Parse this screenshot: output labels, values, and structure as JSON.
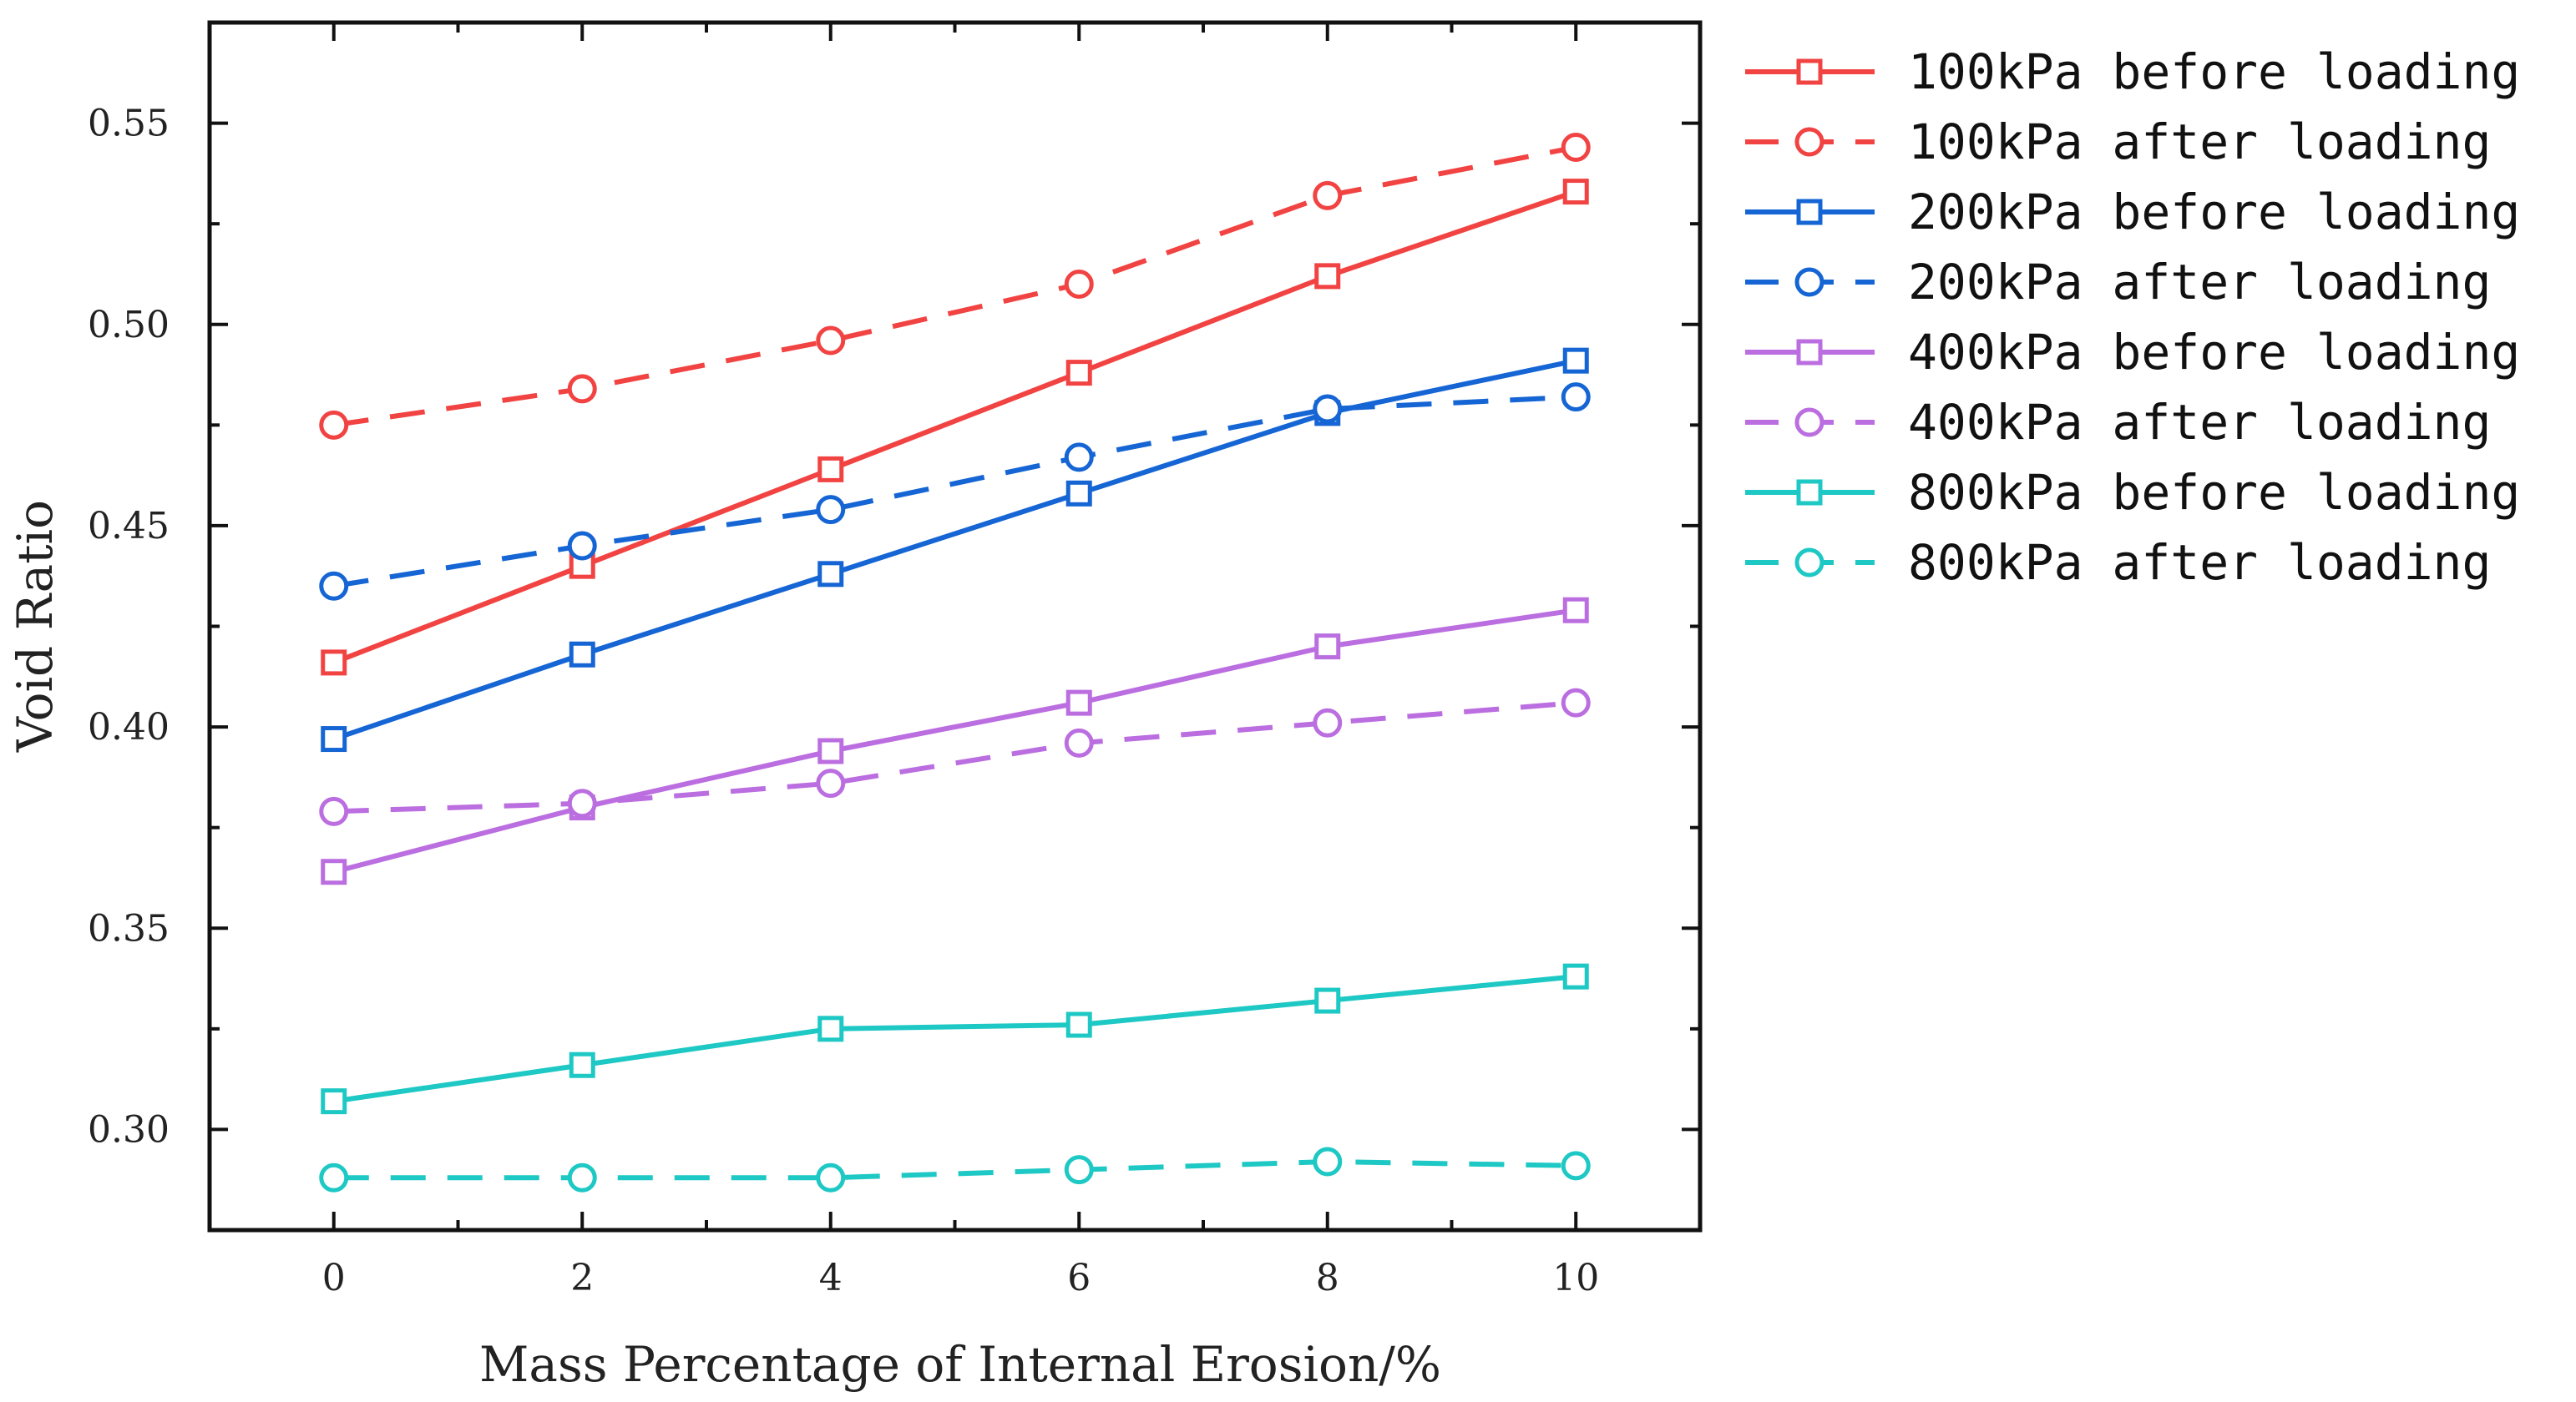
{
  "chart_data": {
    "type": "line",
    "title": "",
    "xlabel": "Mass Percentage of Internal Erosion/%",
    "ylabel": "Void Ratio",
    "x": [
      0,
      2,
      4,
      6,
      8,
      10
    ],
    "xticks": [
      "0",
      "2",
      "4",
      "6",
      "8",
      "10"
    ],
    "yticks": [
      "0.30",
      "0.35",
      "0.40",
      "0.45",
      "0.50",
      "0.55"
    ],
    "xlim": [
      -1,
      11
    ],
    "ylim": [
      0.275,
      0.575
    ],
    "grid": false,
    "legend_position": "outside-right-top",
    "series": [
      {
        "name": "100kPa before loading",
        "color": "#f24343",
        "style": "solid",
        "marker": "square",
        "values": [
          0.416,
          0.44,
          0.464,
          0.488,
          0.512,
          0.533
        ]
      },
      {
        "name": "100kPa after loading",
        "color": "#f24343",
        "style": "dashed",
        "marker": "circle",
        "values": [
          0.475,
          0.484,
          0.496,
          0.51,
          0.532,
          0.544
        ]
      },
      {
        "name": "200kPa before loading",
        "color": "#1565d4",
        "style": "solid",
        "marker": "square",
        "values": [
          0.397,
          0.418,
          0.438,
          0.458,
          0.478,
          0.491
        ]
      },
      {
        "name": "200kPa after loading",
        "color": "#1565d4",
        "style": "dashed",
        "marker": "circle",
        "values": [
          0.435,
          0.445,
          0.454,
          0.467,
          0.479,
          0.482
        ]
      },
      {
        "name": "400kPa before loading",
        "color": "#bb6ee0",
        "style": "solid",
        "marker": "square",
        "values": [
          0.364,
          0.38,
          0.394,
          0.406,
          0.42,
          0.429
        ]
      },
      {
        "name": "400kPa after loading",
        "color": "#bb6ee0",
        "style": "dashed",
        "marker": "circle",
        "values": [
          0.379,
          0.381,
          0.386,
          0.396,
          0.401,
          0.406
        ]
      },
      {
        "name": "800kPa before loading",
        "color": "#1ec8c4",
        "style": "solid",
        "marker": "square",
        "values": [
          0.307,
          0.316,
          0.325,
          0.326,
          0.332,
          0.338
        ]
      },
      {
        "name": "800kPa after loading",
        "color": "#1ec8c4",
        "style": "dashed",
        "marker": "circle",
        "values": [
          0.288,
          0.288,
          0.288,
          0.29,
          0.292,
          0.291
        ]
      }
    ]
  }
}
